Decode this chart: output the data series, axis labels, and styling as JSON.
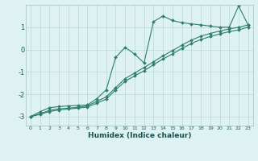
{
  "xlabel": "Humidex (Indice chaleur)",
  "bg_color": "#dff2f2",
  "grid_color": "#b8d8d8",
  "line_color": "#2e7d6e",
  "xlim": [
    -0.5,
    23.5
  ],
  "ylim": [
    -3.4,
    2.0
  ],
  "xticks": [
    0,
    1,
    2,
    3,
    4,
    5,
    6,
    7,
    8,
    9,
    10,
    11,
    12,
    13,
    14,
    15,
    16,
    17,
    18,
    19,
    20,
    21,
    22,
    23
  ],
  "yticks": [
    -3,
    -2,
    -1,
    0,
    1
  ],
  "line1_x": [
    0,
    1,
    2,
    3,
    4,
    5,
    6,
    7,
    8,
    9,
    10,
    11,
    12,
    13,
    14,
    15,
    16,
    17,
    18,
    19,
    20,
    21,
    22,
    23
  ],
  "line1_y": [
    -3.0,
    -2.78,
    -2.6,
    -2.55,
    -2.52,
    -2.5,
    -2.48,
    -2.2,
    -1.8,
    -0.35,
    0.1,
    -0.2,
    -0.6,
    1.25,
    1.5,
    1.3,
    1.2,
    1.15,
    1.1,
    1.05,
    1.0,
    1.0,
    1.95,
    1.1
  ],
  "line2_x": [
    0,
    1,
    2,
    3,
    4,
    5,
    6,
    7,
    8,
    9,
    10,
    11,
    12,
    13,
    14,
    15,
    16,
    17,
    18,
    19,
    20,
    21,
    22,
    23
  ],
  "line2_y": [
    -3.0,
    -2.87,
    -2.72,
    -2.65,
    -2.62,
    -2.58,
    -2.52,
    -2.32,
    -2.12,
    -1.7,
    -1.3,
    -1.05,
    -0.8,
    -0.55,
    -0.28,
    -0.05,
    0.2,
    0.42,
    0.6,
    0.72,
    0.83,
    0.92,
    1.0,
    1.1
  ],
  "line3_x": [
    0,
    1,
    2,
    3,
    4,
    5,
    6,
    7,
    8,
    9,
    10,
    11,
    12,
    13,
    14,
    15,
    16,
    17,
    18,
    19,
    20,
    21,
    22,
    23
  ],
  "line3_y": [
    -3.0,
    -2.9,
    -2.77,
    -2.7,
    -2.66,
    -2.62,
    -2.57,
    -2.4,
    -2.22,
    -1.8,
    -1.42,
    -1.18,
    -0.95,
    -0.68,
    -0.42,
    -0.2,
    0.05,
    0.27,
    0.45,
    0.58,
    0.7,
    0.8,
    0.88,
    1.0
  ]
}
